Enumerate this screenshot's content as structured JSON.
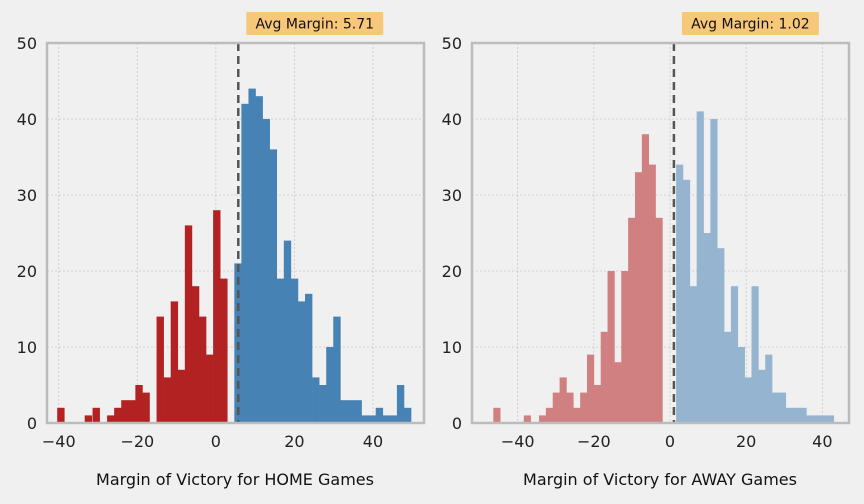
{
  "chart_data": [
    {
      "type": "histogram",
      "xlabel": "Margin of Victory for HOME Games",
      "annotation": "Avg Margin: 5.71",
      "mean_line": 5.71,
      "xlim": [
        -43,
        53
      ],
      "ylim": [
        0,
        50
      ],
      "xticks": [
        -40,
        -20,
        0,
        20,
        40
      ],
      "xtick_labels": [
        "−40",
        "−20",
        "0",
        "20",
        "40"
      ],
      "yticks": [
        0,
        10,
        20,
        30,
        40,
        50
      ],
      "grid": true,
      "bin_width": 1.8,
      "colors": {
        "loss": "#b22222",
        "win": "#4682b4"
      },
      "bins": [
        {
          "x": -39.5,
          "count": 2,
          "color": "loss"
        },
        {
          "x": -32.5,
          "count": 1,
          "color": "loss"
        },
        {
          "x": -30.5,
          "count": 2,
          "color": "loss"
        },
        {
          "x": -26.8,
          "count": 1,
          "color": "loss"
        },
        {
          "x": -25.0,
          "count": 2,
          "color": "loss"
        },
        {
          "x": -23.2,
          "count": 3,
          "color": "loss"
        },
        {
          "x": -21.4,
          "count": 3,
          "color": "loss"
        },
        {
          "x": -19.6,
          "count": 5,
          "color": "loss"
        },
        {
          "x": -17.8,
          "count": 4,
          "color": "loss"
        },
        {
          "x": -14.2,
          "count": 14,
          "color": "loss"
        },
        {
          "x": -12.4,
          "count": 6,
          "color": "loss"
        },
        {
          "x": -10.6,
          "count": 16,
          "color": "loss"
        },
        {
          "x": -8.8,
          "count": 7,
          "color": "loss"
        },
        {
          "x": -7.0,
          "count": 26,
          "color": "loss"
        },
        {
          "x": -5.2,
          "count": 18,
          "color": "loss"
        },
        {
          "x": -3.4,
          "count": 14,
          "color": "loss"
        },
        {
          "x": -1.6,
          "count": 9,
          "color": "loss"
        },
        {
          "x": 0.2,
          "count": 28,
          "color": "loss"
        },
        {
          "x": 2.0,
          "count": 19,
          "color": "loss"
        },
        {
          "x": 5.6,
          "count": 21,
          "color": "win"
        },
        {
          "x": 7.4,
          "count": 42,
          "color": "win"
        },
        {
          "x": 9.2,
          "count": 44,
          "color": "win"
        },
        {
          "x": 11.0,
          "count": 43,
          "color": "win"
        },
        {
          "x": 12.8,
          "count": 40,
          "color": "win"
        },
        {
          "x": 14.6,
          "count": 36,
          "color": "win"
        },
        {
          "x": 16.4,
          "count": 19,
          "color": "win"
        },
        {
          "x": 18.2,
          "count": 24,
          "color": "win"
        },
        {
          "x": 20.0,
          "count": 19,
          "color": "win"
        },
        {
          "x": 21.8,
          "count": 16,
          "color": "win"
        },
        {
          "x": 23.6,
          "count": 17,
          "color": "win"
        },
        {
          "x": 25.4,
          "count": 6,
          "color": "win"
        },
        {
          "x": 27.2,
          "count": 5,
          "color": "win"
        },
        {
          "x": 29.0,
          "count": 10,
          "color": "win"
        },
        {
          "x": 30.8,
          "count": 14,
          "color": "win"
        },
        {
          "x": 32.6,
          "count": 3,
          "color": "win"
        },
        {
          "x": 34.4,
          "count": 3,
          "color": "win"
        },
        {
          "x": 36.2,
          "count": 3,
          "color": "win"
        },
        {
          "x": 38.0,
          "count": 1,
          "color": "win"
        },
        {
          "x": 39.8,
          "count": 1,
          "color": "win"
        },
        {
          "x": 41.6,
          "count": 2,
          "color": "win"
        },
        {
          "x": 43.4,
          "count": 1,
          "color": "win"
        },
        {
          "x": 45.2,
          "count": 1,
          "color": "win"
        },
        {
          "x": 47.0,
          "count": 5,
          "color": "win"
        },
        {
          "x": 48.8,
          "count": 2,
          "color": "win"
        }
      ]
    },
    {
      "type": "histogram",
      "xlabel": "Margin of Victory for AWAY Games",
      "annotation": "Avg Margin: 1.02",
      "mean_line": 1.02,
      "xlim": [
        -52,
        47
      ],
      "ylim": [
        0,
        50
      ],
      "xticks": [
        -40,
        -20,
        0,
        20,
        40
      ],
      "xtick_labels": [
        "−40",
        "−20",
        "0",
        "20",
        "40"
      ],
      "yticks": [
        0,
        10,
        20,
        30,
        40,
        50
      ],
      "grid": true,
      "bin_width": 1.8,
      "colors": {
        "loss": "#d08080",
        "win": "#94b4d0"
      },
      "bins": [
        {
          "x": -45.5,
          "count": 2,
          "color": "loss"
        },
        {
          "x": -37.5,
          "count": 1,
          "color": "loss"
        },
        {
          "x": -33.5,
          "count": 1,
          "color": "loss"
        },
        {
          "x": -31.7,
          "count": 2,
          "color": "loss"
        },
        {
          "x": -29.9,
          "count": 4,
          "color": "loss"
        },
        {
          "x": -28.1,
          "count": 6,
          "color": "loss"
        },
        {
          "x": -26.3,
          "count": 4,
          "color": "loss"
        },
        {
          "x": -24.5,
          "count": 2,
          "color": "loss"
        },
        {
          "x": -22.7,
          "count": 4,
          "color": "loss"
        },
        {
          "x": -20.9,
          "count": 9,
          "color": "loss"
        },
        {
          "x": -19.1,
          "count": 5,
          "color": "loss"
        },
        {
          "x": -17.3,
          "count": 12,
          "color": "loss"
        },
        {
          "x": -15.5,
          "count": 20,
          "color": "loss"
        },
        {
          "x": -13.7,
          "count": 8,
          "color": "loss"
        },
        {
          "x": -11.9,
          "count": 20,
          "color": "loss"
        },
        {
          "x": -10.1,
          "count": 27,
          "color": "loss"
        },
        {
          "x": -8.3,
          "count": 33,
          "color": "loss"
        },
        {
          "x": -6.5,
          "count": 38,
          "color": "loss"
        },
        {
          "x": -4.7,
          "count": 34,
          "color": "loss"
        },
        {
          "x": -2.9,
          "count": 27,
          "color": "loss"
        },
        {
          "x": 2.5,
          "count": 34,
          "color": "win"
        },
        {
          "x": 4.3,
          "count": 32,
          "color": "win"
        },
        {
          "x": 6.1,
          "count": 18,
          "color": "win"
        },
        {
          "x": 7.9,
          "count": 41,
          "color": "win"
        },
        {
          "x": 9.7,
          "count": 25,
          "color": "win"
        },
        {
          "x": 11.5,
          "count": 40,
          "color": "win"
        },
        {
          "x": 13.3,
          "count": 23,
          "color": "win"
        },
        {
          "x": 15.1,
          "count": 12,
          "color": "win"
        },
        {
          "x": 16.9,
          "count": 18,
          "color": "win"
        },
        {
          "x": 18.7,
          "count": 10,
          "color": "win"
        },
        {
          "x": 20.5,
          "count": 6,
          "color": "win"
        },
        {
          "x": 22.3,
          "count": 18,
          "color": "win"
        },
        {
          "x": 24.1,
          "count": 7,
          "color": "win"
        },
        {
          "x": 25.9,
          "count": 9,
          "color": "win"
        },
        {
          "x": 27.7,
          "count": 4,
          "color": "win"
        },
        {
          "x": 29.5,
          "count": 4,
          "color": "win"
        },
        {
          "x": 31.3,
          "count": 2,
          "color": "win"
        },
        {
          "x": 33.1,
          "count": 2,
          "color": "win"
        },
        {
          "x": 34.9,
          "count": 2,
          "color": "win"
        },
        {
          "x": 36.7,
          "count": 1,
          "color": "win"
        },
        {
          "x": 38.5,
          "count": 1,
          "color": "win"
        },
        {
          "x": 40.3,
          "count": 1,
          "color": "win"
        },
        {
          "x": 42.1,
          "count": 1,
          "color": "win"
        }
      ]
    }
  ]
}
